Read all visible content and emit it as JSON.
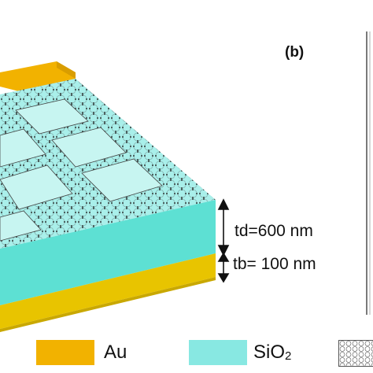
{
  "panel_label": "(b)",
  "dimensions": {
    "td_label": "td=600 nm",
    "tb_label": "tb= 100 nm"
  },
  "legend": {
    "au": {
      "label": "Au",
      "color": "#f2b200"
    },
    "sio2": {
      "label": "SiO",
      "subscript": "2",
      "color": "#88e8e2"
    },
    "graphene": {
      "label": ""
    }
  },
  "colors": {
    "substrate": "#e8c400",
    "dielectric_top": "#a9efea",
    "dielectric_front": "#5de0d3",
    "patch": "#c7f5f1",
    "electrode": "#f2b200"
  }
}
